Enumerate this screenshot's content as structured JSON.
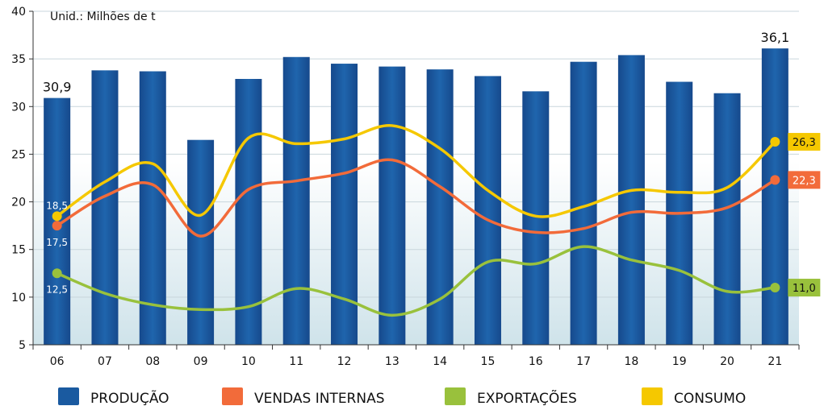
{
  "chart_data": {
    "type": "bar",
    "title": "",
    "unit_label": "Unid.: Milhões de t",
    "categories": [
      "06",
      "07",
      "08",
      "09",
      "10",
      "11",
      "12",
      "13",
      "14",
      "15",
      "16",
      "17",
      "18",
      "19",
      "20",
      "21"
    ],
    "ylim": [
      5,
      40
    ],
    "yticks": [
      5,
      10,
      15,
      20,
      25,
      30,
      35,
      40
    ],
    "grid": true,
    "legend_position": "bottom",
    "series": [
      {
        "name": "PRODUÇÃO",
        "kind": "bar",
        "color": "#1a5aa0",
        "values": [
          30.9,
          33.8,
          33.7,
          26.5,
          32.9,
          35.2,
          34.5,
          34.2,
          33.9,
          33.2,
          31.6,
          34.7,
          35.4,
          32.6,
          31.4,
          36.1
        ]
      },
      {
        "name": "VENDAS INTERNAS",
        "kind": "line",
        "color": "#f26b3a",
        "values": [
          17.5,
          20.6,
          21.8,
          16.4,
          21.3,
          22.2,
          23.0,
          24.4,
          21.6,
          18.1,
          16.8,
          17.2,
          18.9,
          18.8,
          19.4,
          22.3
        ]
      },
      {
        "name": "EXPORTAÇÕES",
        "kind": "line",
        "color": "#99c13c",
        "values": [
          12.5,
          10.4,
          9.2,
          8.7,
          9.0,
          10.9,
          9.8,
          8.1,
          9.8,
          13.7,
          13.5,
          15.3,
          13.9,
          12.8,
          10.6,
          11.0
        ]
      },
      {
        "name": "CONSUMO",
        "kind": "line",
        "color": "#f5c800",
        "values": [
          18.5,
          22.1,
          24.0,
          18.6,
          26.7,
          26.1,
          26.6,
          28.0,
          25.6,
          21.2,
          18.5,
          19.5,
          21.2,
          21.0,
          21.5,
          26.3
        ]
      }
    ],
    "annotations": {
      "bar_first": "30,9",
      "bar_last": "36,1",
      "consumo_first": "18,5",
      "consumo_last": "26,3",
      "vendas_first": "17,5",
      "vendas_last": "22,3",
      "export_first": "12,5",
      "export_last": "11,0"
    }
  }
}
